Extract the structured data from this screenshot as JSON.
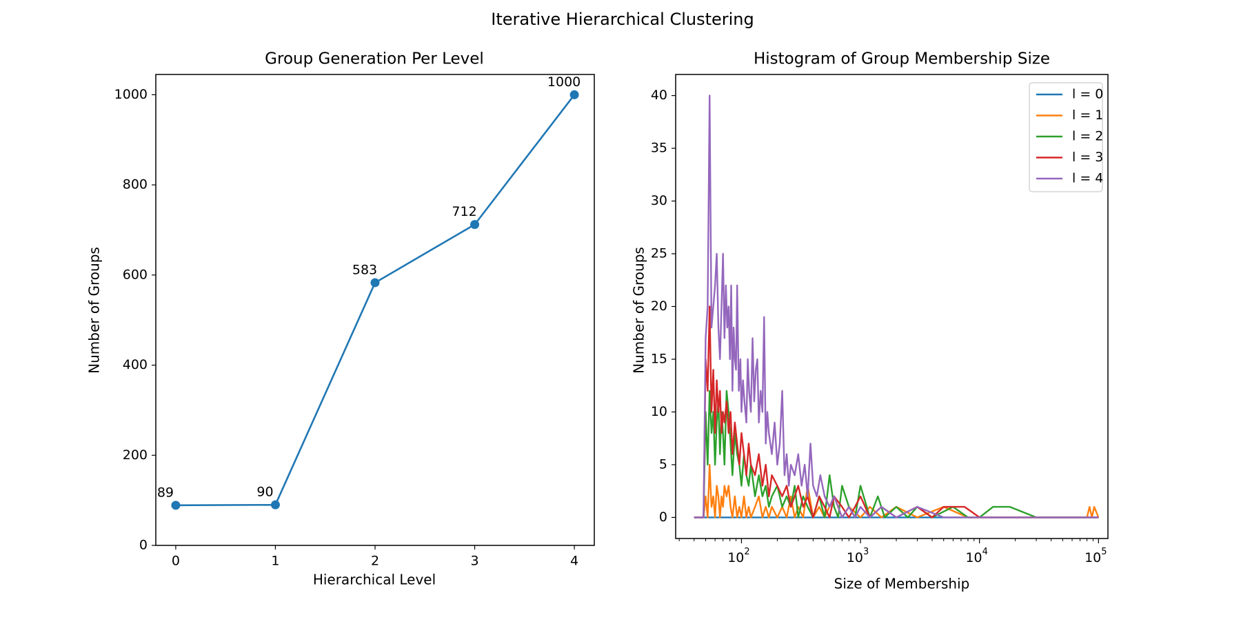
{
  "figure": {
    "title": "Iterative Hierarchical Clustering"
  },
  "colors": {
    "l0": "#1f77b4",
    "l1": "#ff7f0e",
    "l2": "#2ca02c",
    "l3": "#d62728",
    "l4": "#9467bd"
  },
  "chart_data": [
    {
      "type": "line",
      "title": "Group Generation Per Level",
      "xlabel": "Hierarchical Level",
      "ylabel": "Number of Groups",
      "x": [
        0,
        1,
        2,
        3,
        4
      ],
      "values": [
        89,
        90,
        583,
        712,
        1000
      ],
      "data_labels": [
        "89",
        "90",
        "583",
        "712",
        "1000"
      ],
      "xticks": [
        "0",
        "1",
        "2",
        "3",
        "4"
      ],
      "yticks": [
        "0",
        "200",
        "400",
        "600",
        "800",
        "1000"
      ],
      "xlim": [
        -0.2,
        4.2
      ],
      "ylim": [
        0,
        1045
      ],
      "marker": "circle",
      "legend": false,
      "grid": false
    },
    {
      "type": "line",
      "title": "Histogram of Group Membership Size",
      "xlabel": "Size of Membership",
      "ylabel": "Number of Groups",
      "x_scale": "log",
      "xlim": [
        28,
        120000
      ],
      "ylim": [
        -2,
        42
      ],
      "xticks": [
        {
          "base": "10",
          "exp": "2"
        },
        {
          "base": "10",
          "exp": "3"
        },
        {
          "base": "10",
          "exp": "4"
        },
        {
          "base": "10",
          "exp": "5"
        }
      ],
      "yticks": [
        "0",
        "5",
        "10",
        "15",
        "20",
        "25",
        "30",
        "35",
        "40"
      ],
      "legend_position": "upper right",
      "grid": false,
      "series": [
        {
          "name": "l = 0",
          "color_key": "l0",
          "x": [
            40,
            100000
          ],
          "y": [
            0,
            0
          ]
        },
        {
          "name": "l = 1",
          "color_key": "l1",
          "x": [
            40,
            48,
            50,
            52,
            54,
            56,
            58,
            60,
            62,
            64,
            66,
            68,
            70,
            72,
            75,
            78,
            81,
            84,
            88,
            92,
            96,
            100,
            105,
            110,
            115,
            120,
            130,
            140,
            150,
            160,
            170,
            180,
            200,
            220,
            240,
            260,
            280,
            300,
            330,
            360,
            400,
            450,
            500,
            600,
            700,
            800,
            1000,
            1200,
            1500,
            2000,
            3000,
            5000,
            8000,
            10000,
            20000,
            50000,
            80000,
            84000,
            88000,
            92000,
            100000
          ],
          "y": [
            0,
            0,
            2,
            0,
            5,
            1,
            2,
            0,
            3,
            2,
            0,
            2,
            1,
            3,
            2,
            3,
            1,
            0,
            2,
            0,
            1,
            0,
            2,
            0,
            1,
            0,
            1,
            2,
            0,
            1,
            0,
            1,
            0,
            1,
            0,
            2,
            0,
            1,
            0,
            3,
            0,
            1,
            0,
            2,
            0,
            1,
            0,
            1,
            0,
            1,
            0,
            1,
            0,
            0,
            0,
            0,
            0,
            1,
            0,
            1,
            0
          ]
        },
        {
          "name": "l = 2",
          "color_key": "l2",
          "x": [
            40,
            48,
            50,
            52,
            54,
            56,
            58,
            60,
            62,
            64,
            66,
            68,
            70,
            72,
            75,
            78,
            81,
            84,
            88,
            92,
            96,
            100,
            105,
            110,
            115,
            120,
            130,
            140,
            150,
            160,
            170,
            180,
            200,
            220,
            240,
            260,
            280,
            300,
            330,
            360,
            400,
            450,
            500,
            550,
            600,
            650,
            700,
            800,
            900,
            1000,
            1200,
            1400,
            1600,
            2000,
            2500,
            3000,
            4000,
            6000,
            8000,
            10000,
            13000,
            18000,
            30000,
            100000
          ],
          "y": [
            0,
            0,
            10,
            5,
            12,
            8,
            10,
            5,
            9,
            11,
            6,
            10,
            8,
            5,
            12,
            10,
            7,
            4,
            8,
            6,
            5,
            3,
            6,
            4,
            3,
            5,
            2,
            4,
            2,
            3,
            1,
            2,
            3,
            1,
            2,
            1,
            3,
            0,
            2,
            1,
            0,
            2,
            0,
            4,
            1,
            0,
            3,
            1,
            0,
            3,
            0,
            2,
            0,
            1,
            0,
            1,
            0,
            1,
            0,
            0,
            1,
            1,
            0,
            0
          ]
        },
        {
          "name": "l = 3",
          "color_key": "l3",
          "x": [
            40,
            48,
            50,
            52,
            54,
            56,
            58,
            60,
            62,
            64,
            66,
            68,
            70,
            72,
            75,
            78,
            81,
            84,
            88,
            92,
            96,
            100,
            105,
            110,
            115,
            120,
            130,
            140,
            150,
            160,
            170,
            180,
            200,
            220,
            240,
            260,
            280,
            300,
            330,
            360,
            400,
            450,
            500,
            550,
            600,
            700,
            800,
            900,
            1000,
            1200,
            1500,
            2000,
            3000,
            4000,
            5000,
            7500,
            10000,
            20000,
            50000,
            100000
          ],
          "y": [
            0,
            0,
            15,
            12,
            20,
            10,
            14,
            8,
            13,
            10,
            12,
            8,
            10,
            9,
            11,
            8,
            10,
            6,
            9,
            7,
            5,
            8,
            6,
            4,
            7,
            5,
            4,
            6,
            3,
            5,
            2,
            4,
            3,
            2,
            3,
            1,
            2,
            3,
            1,
            2,
            0,
            2,
            1,
            0,
            2,
            1,
            0,
            1,
            2,
            0,
            1,
            0,
            1,
            0,
            1,
            1,
            0,
            0,
            0,
            0
          ]
        },
        {
          "name": "l = 4",
          "color_key": "l4",
          "x": [
            40,
            48,
            50,
            52,
            54,
            56,
            58,
            60,
            62,
            64,
            66,
            68,
            70,
            72,
            74,
            76,
            78,
            80,
            82,
            84,
            86,
            88,
            90,
            92,
            95,
            98,
            100,
            103,
            106,
            110,
            113,
            116,
            120,
            124,
            128,
            132,
            136,
            140,
            145,
            150,
            155,
            160,
            165,
            170,
            180,
            190,
            200,
            210,
            220,
            230,
            240,
            250,
            260,
            280,
            300,
            320,
            340,
            360,
            380,
            400,
            430,
            460,
            500,
            550,
            600,
            650,
            700,
            800,
            900,
            1000,
            1200,
            1500,
            2000,
            3000,
            5000,
            8000,
            100000
          ],
          "y": [
            0,
            0,
            17,
            20,
            40,
            18,
            20,
            22,
            25,
            18,
            15,
            20,
            25,
            17,
            22,
            18,
            20,
            15,
            22,
            12,
            18,
            15,
            14,
            22,
            12,
            15,
            10,
            13,
            11,
            9,
            15,
            12,
            10,
            17,
            11,
            14,
            15,
            9,
            12,
            10,
            19,
            7,
            10,
            8,
            6,
            9,
            5,
            7,
            12,
            4,
            6,
            3,
            5,
            4,
            6,
            3,
            5,
            2,
            7,
            3,
            2,
            4,
            2,
            1,
            2,
            1,
            0,
            1,
            0,
            1,
            0,
            1,
            0,
            1,
            0,
            0,
            0
          ]
        }
      ]
    }
  ]
}
